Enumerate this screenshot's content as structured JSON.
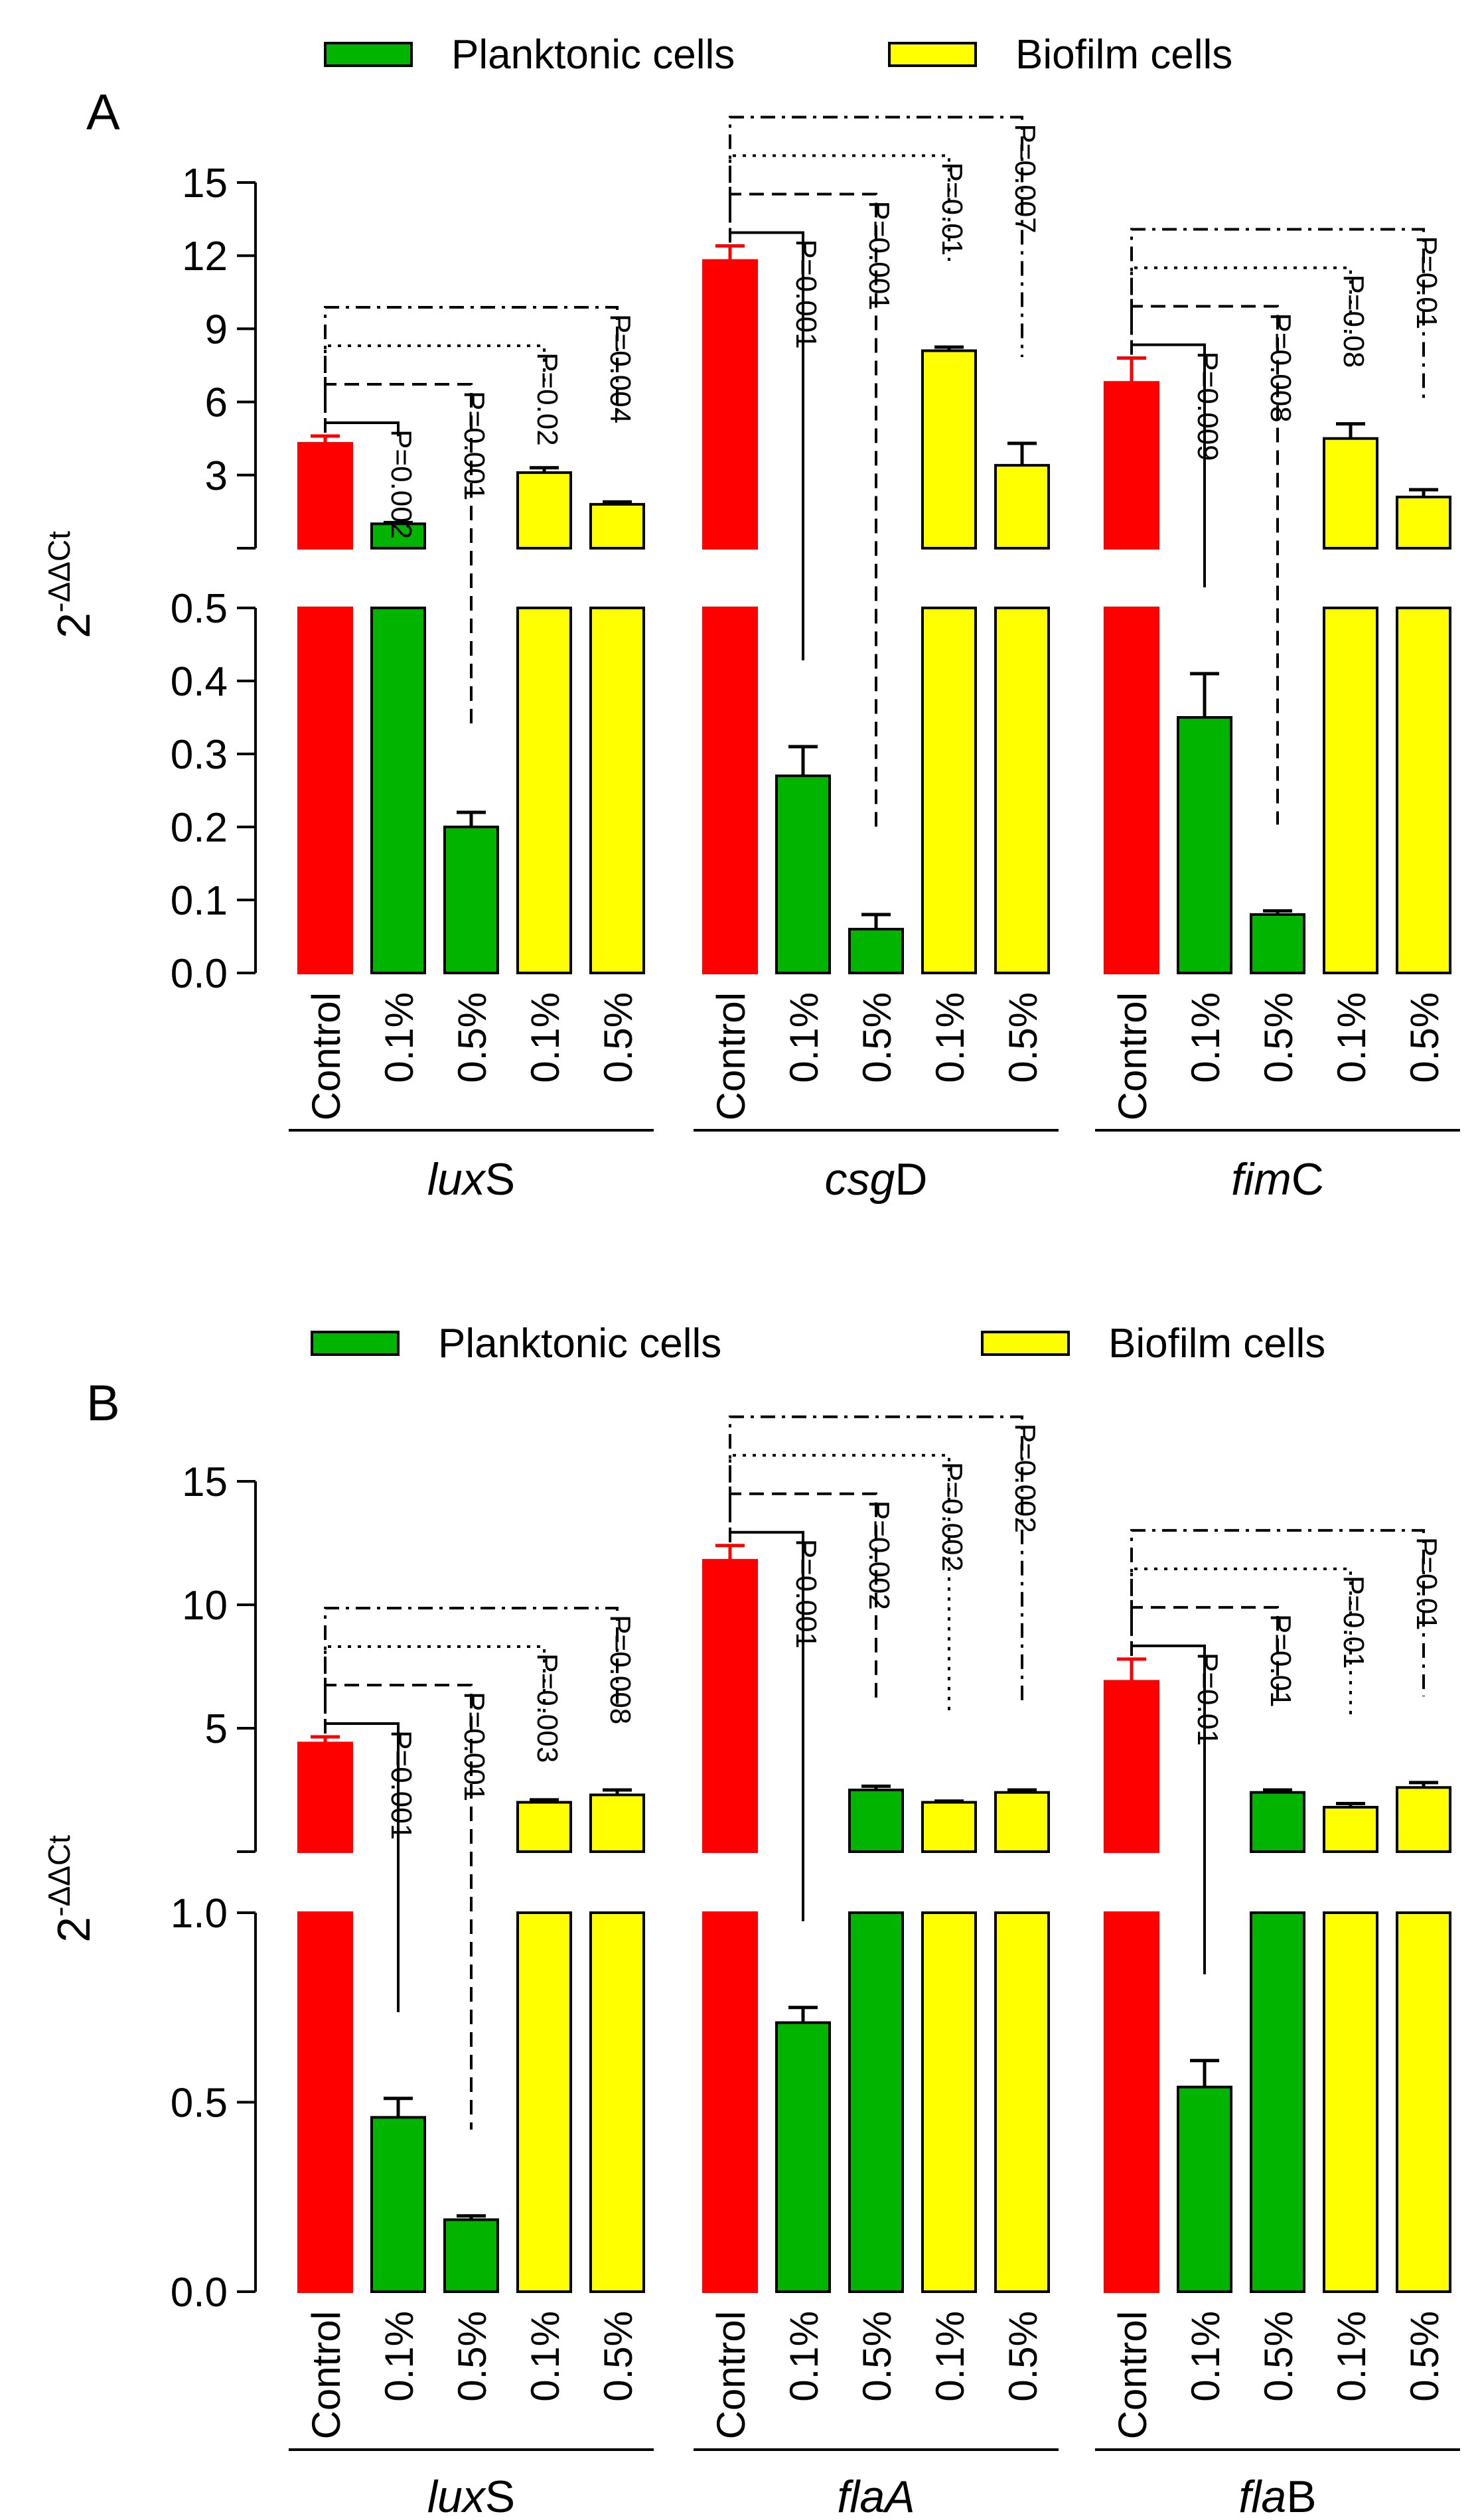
{
  "legend": {
    "planktonic": "Planktonic cells",
    "biofilm": "Biofilm cells"
  },
  "colors": {
    "control": "#ff0000",
    "planktonic": "#00b400",
    "biofilm": "#ffff00",
    "axis": "#000000"
  },
  "y_axis": {
    "label_base": "2",
    "label_exponent": "-ΔΔCt"
  },
  "chart_data": [
    {
      "type": "bar",
      "panel": "A",
      "broken_axis": true,
      "ylabel": "2^-ΔΔCt",
      "lower_range": [
        0,
        0.5
      ],
      "lower_ticks": [
        "0.0",
        "0.1",
        "0.2",
        "0.3",
        "0.4",
        "0.5"
      ],
      "upper_range": [
        0,
        15
      ],
      "upper_ticks": [
        "3",
        "6",
        "9",
        "12",
        "15"
      ],
      "categories": [
        "Control",
        "0.1%",
        "0.5%",
        "0.1%",
        "0.5%"
      ],
      "groups": [
        {
          "gene_prefix": "lux",
          "gene_suffix": "S",
          "italic_part": "prefix",
          "values": [
            4.3,
            1.0,
            0.2,
            3.1,
            1.8
          ],
          "errors": [
            0.3,
            0.05,
            0.02,
            0.2,
            0.1
          ],
          "pvalues": [
            "P=0.002",
            "P=0.001",
            "P=0.02",
            "P=0.004"
          ]
        },
        {
          "gene_prefix": "csg",
          "gene_suffix": "D",
          "italic_part": "prefix",
          "values": [
            11.8,
            0.27,
            0.06,
            8.1,
            3.4
          ],
          "errors": [
            0.6,
            0.04,
            0.02,
            0.15,
            0.9
          ],
          "pvalues": [
            "P=0.001",
            "P=0.001",
            "P=0.01",
            "P=0.007"
          ]
        },
        {
          "gene_prefix": "fim",
          "gene_suffix": "C",
          "italic_part": "prefix",
          "values": [
            6.8,
            0.35,
            0.08,
            4.5,
            2.1
          ],
          "errors": [
            1.0,
            0.06,
            0.005,
            0.6,
            0.3
          ],
          "pvalues": [
            "P=0.009",
            "P=0.008",
            "P=0.08",
            "P=0.01"
          ]
        }
      ]
    },
    {
      "type": "bar",
      "panel": "B",
      "broken_axis": true,
      "ylabel": "2^-ΔΔCt",
      "lower_range": [
        0,
        1.0
      ],
      "lower_ticks": [
        "0.0",
        "0.5",
        "1.0"
      ],
      "upper_range": [
        0,
        15
      ],
      "upper_ticks": [
        "5",
        "10",
        "15"
      ],
      "categories": [
        "Control",
        "0.1%",
        "0.5%",
        "0.1%",
        "0.5%"
      ],
      "groups": [
        {
          "gene_prefix": "lux",
          "gene_suffix": "S",
          "italic_part": "prefix",
          "values": [
            4.4,
            0.46,
            0.19,
            2.0,
            2.3
          ],
          "errors": [
            0.25,
            0.05,
            0.01,
            0.1,
            0.2
          ],
          "pvalues": [
            "P=0.001",
            "P=0.001",
            "P=0.003",
            "P=0.008"
          ]
        },
        {
          "gene_prefix": "flaA",
          "gene_suffix": "",
          "italic_part": "prefix",
          "values": [
            11.8,
            0.71,
            2.5,
            2.0,
            2.4
          ],
          "errors": [
            0.6,
            0.04,
            0.15,
            0.05,
            0.1
          ],
          "pvalues": [
            "P=0.001",
            "P=0.002",
            "P=0.002",
            "P=0.002"
          ]
        },
        {
          "gene_prefix": "fla",
          "gene_suffix": "B",
          "italic_part": "prefix",
          "values": [
            6.9,
            0.54,
            2.4,
            1.8,
            2.6
          ],
          "errors": [
            0.9,
            0.07,
            0.1,
            0.15,
            0.2
          ],
          "pvalues": [
            "P=0.01",
            "P=0.01",
            "P=0.01",
            "P=0.01"
          ]
        }
      ]
    }
  ]
}
